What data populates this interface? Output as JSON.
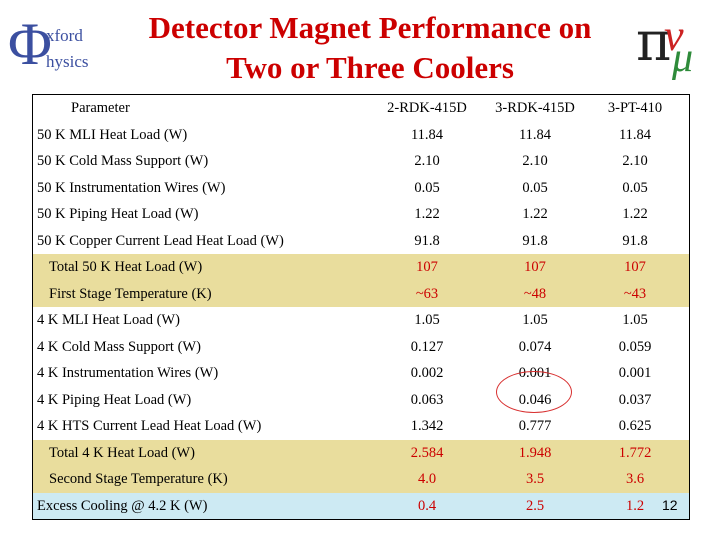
{
  "logo_left": {
    "symbol": "Φ",
    "line1": "xford",
    "line2": "hysics"
  },
  "title": {
    "line1": "Detector Magnet Performance on",
    "line2": "Two or Three Coolers"
  },
  "logo_right": {
    "pi": "π",
    "nu": "ν",
    "mu": "μ"
  },
  "table": {
    "header": {
      "param": "Parameter",
      "c1": "2-RDK-415D",
      "c2": "3-RDK-415D",
      "c3": "3-PT-410"
    },
    "rows": [
      {
        "name": "50 K MLI Heat Load (W)",
        "v": [
          "11.84",
          "11.84",
          "11.84"
        ]
      },
      {
        "name": "50 K Cold Mass Support (W)",
        "v": [
          "2.10",
          "2.10",
          "2.10"
        ]
      },
      {
        "name": "50 K Instrumentation Wires (W)",
        "v": [
          "0.05",
          "0.05",
          "0.05"
        ]
      },
      {
        "name": "50 K Piping Heat Load (W)",
        "v": [
          "1.22",
          "1.22",
          "1.22"
        ]
      },
      {
        "name": "50 K Copper Current Lead Heat Load (W)",
        "v": [
          "91.8",
          "91.8",
          "91.8"
        ]
      },
      {
        "name": "Total 50 K Heat Load (W)",
        "v": [
          "107",
          "107",
          "107"
        ]
      },
      {
        "name": "First Stage Temperature (K)",
        "v": [
          "~63",
          "~48",
          "~43"
        ]
      },
      {
        "name": "4 K MLI Heat Load (W)",
        "v": [
          "1.05",
          "1.05",
          "1.05"
        ]
      },
      {
        "name": "4 K Cold Mass Support (W)",
        "v": [
          "0.127",
          "0.074",
          "0.059"
        ]
      },
      {
        "name": "4 K Instrumentation Wires (W)",
        "v": [
          "0.002",
          "0.001",
          "0.001"
        ]
      },
      {
        "name": "4 K Piping Heat Load (W)",
        "v": [
          "0.063",
          "0.046",
          "0.037"
        ]
      },
      {
        "name": "4 K HTS Current Lead Heat Load (W)",
        "v": [
          "1.342",
          "0.777",
          "0.625"
        ]
      },
      {
        "name": "Total 4 K Heat Load (W)",
        "v": [
          "2.584",
          "1.948",
          "1.772"
        ]
      },
      {
        "name": "Second Stage Temperature (K)",
        "v": [
          "4.0",
          "3.5",
          "3.6"
        ]
      },
      {
        "name": "Excess Cooling @ 4.2 K (W)",
        "v": [
          "0.4",
          "2.5",
          "1.2"
        ]
      }
    ]
  },
  "slide_number": "12",
  "colors": {
    "title": "#cc0000",
    "highlight_row": "#e9dd9d",
    "last_row": "#cdeaf3",
    "highlight_value": "#cc0000"
  }
}
